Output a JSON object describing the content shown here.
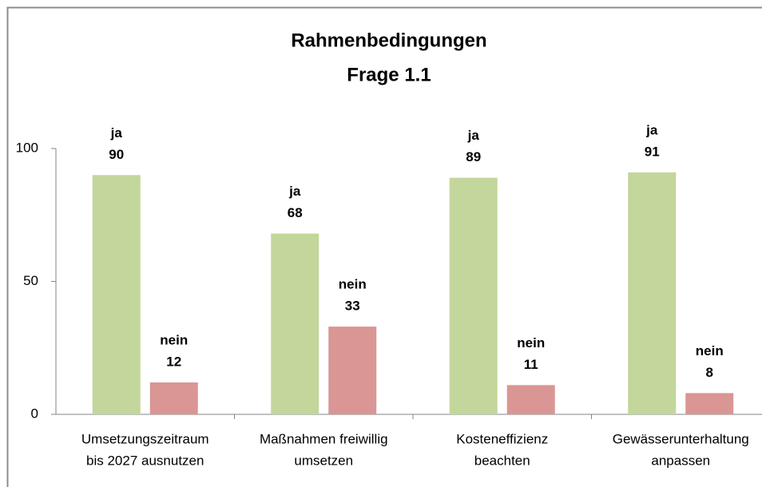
{
  "chart_data": {
    "type": "bar",
    "title": [
      "Rahmenbedingungen",
      "Frage 1.1"
    ],
    "categories": [
      [
        "Umsetzungszeitraum",
        "bis 2027 ausnutzen"
      ],
      [
        "Maßnahmen freiwillig",
        "umsetzen"
      ],
      [
        "Kosteneffizienz",
        "beachten"
      ],
      [
        "Gewässerunterhaltung",
        "anpassen"
      ]
    ],
    "series": [
      {
        "name": "ja",
        "color": "#c3d69b",
        "values": [
          90,
          68,
          89,
          91
        ]
      },
      {
        "name": "nein",
        "color": "#d99694",
        "values": [
          12,
          33,
          11,
          8
        ]
      }
    ],
    "ylim": [
      0,
      100
    ],
    "yticks": [
      0,
      50,
      100
    ],
    "grid": false
  }
}
